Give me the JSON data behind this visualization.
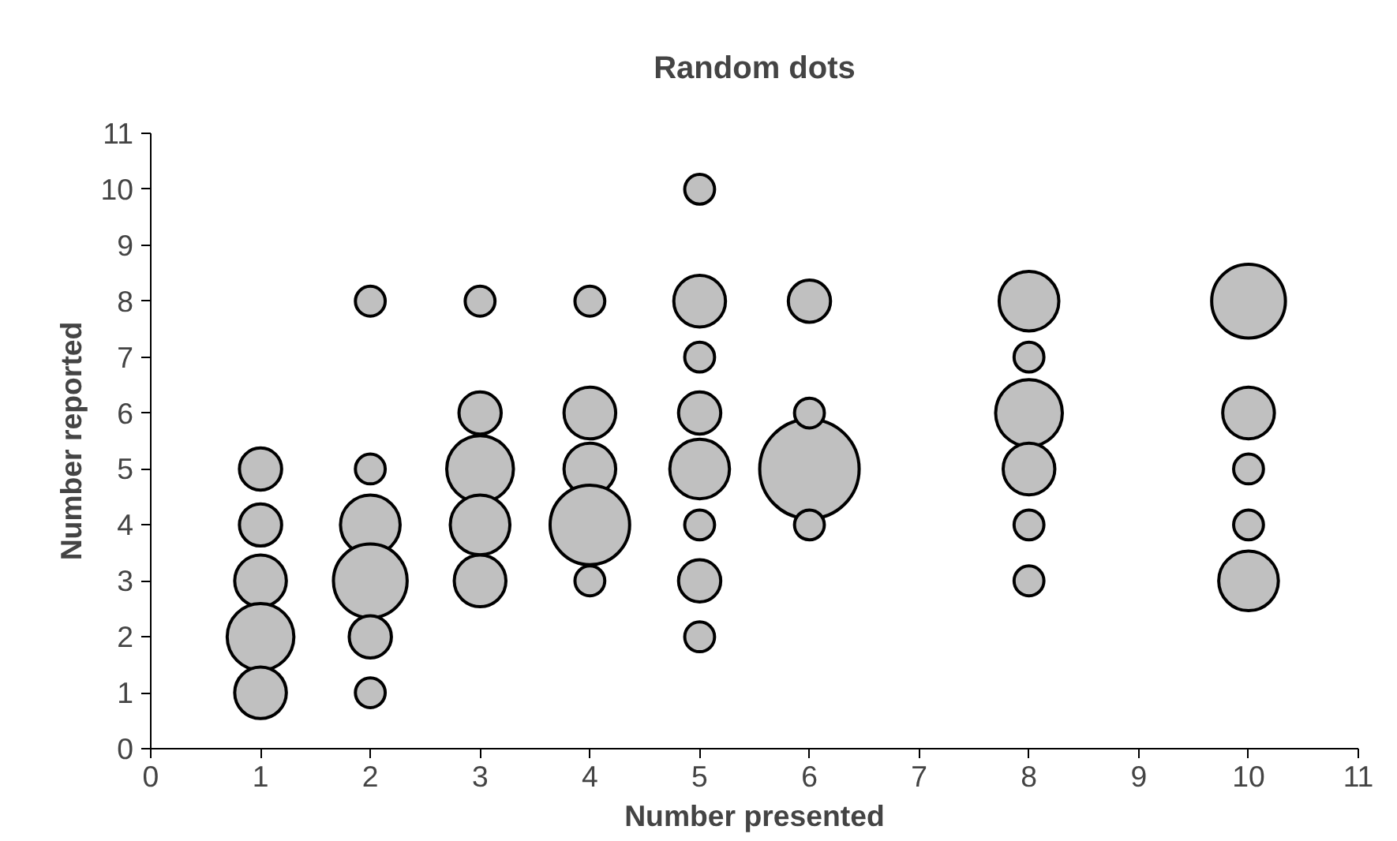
{
  "chart_data": {
    "type": "bubble",
    "title": "Random dots",
    "xlabel": "Number presented",
    "ylabel": "Number reported",
    "x": [
      1,
      1,
      1,
      1,
      1,
      2,
      2,
      2,
      2,
      2,
      2,
      3,
      3,
      3,
      3,
      3,
      4,
      4,
      4,
      4,
      4,
      5,
      5,
      5,
      5,
      5,
      5,
      5,
      5,
      6,
      6,
      6,
      6,
      8,
      8,
      8,
      8,
      8,
      8,
      10,
      10,
      10,
      10,
      10
    ],
    "values": [
      5,
      4,
      3,
      2,
      1,
      8,
      5,
      4,
      3,
      2,
      1,
      8,
      6,
      5,
      4,
      3,
      8,
      6,
      5,
      4,
      3,
      10,
      8,
      7,
      6,
      5,
      4,
      3,
      2,
      5,
      8,
      6,
      4,
      8,
      7,
      6,
      5,
      4,
      3,
      8,
      6,
      5,
      4,
      3
    ],
    "sizes": [
      0.18,
      0.18,
      0.27,
      0.45,
      0.27,
      0.09,
      0.09,
      0.36,
      0.55,
      0.18,
      0.09,
      0.09,
      0.18,
      0.45,
      0.36,
      0.27,
      0.09,
      0.27,
      0.27,
      0.64,
      0.09,
      0.09,
      0.27,
      0.09,
      0.18,
      0.36,
      0.09,
      0.18,
      0.09,
      1,
      0.18,
      0.09,
      0.09,
      0.36,
      0.09,
      0.45,
      0.27,
      0.09,
      0.09,
      0.55,
      0.27,
      0.09,
      0.09,
      0.36
    ],
    "color": "#c0c0c0",
    "xlim": [
      0,
      11
    ],
    "ylim": [
      0,
      11
    ],
    "xticks": [
      0,
      1,
      2,
      3,
      4,
      5,
      6,
      7,
      8,
      9,
      10,
      11
    ],
    "yticks": [
      0,
      1,
      2,
      3,
      4,
      5,
      6,
      7,
      8,
      9,
      10,
      11
    ],
    "grid": false
  }
}
